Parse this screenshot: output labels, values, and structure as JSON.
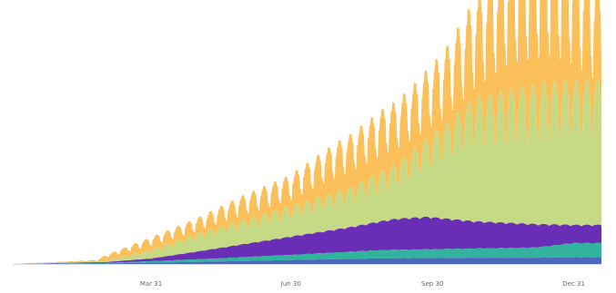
{
  "chart_data": {
    "type": "area",
    "stacked": true,
    "title": "",
    "xlabel": "",
    "ylabel": "",
    "grid": false,
    "legend": "none",
    "x_ticks": [
      {
        "label": "Mar 31",
        "day": 90
      },
      {
        "label": "Jun 30",
        "day": 181
      },
      {
        "label": "Sep 30",
        "day": 273
      },
      {
        "label": "Dec 31",
        "day": 365
      }
    ],
    "x_range_days": [
      0,
      383
    ],
    "y_range": [
      0,
      100
    ],
    "weekly_cycle": true,
    "series": [
      {
        "color": "#4a69bd",
        "x": [
          0,
          60,
          120,
          180,
          240,
          300,
          340,
          365,
          383
        ],
        "y": [
          0,
          0.2,
          0.8,
          1.5,
          2.2,
          2.4,
          2.4,
          2.6,
          2.6
        ]
      },
      {
        "color": "#32b39e",
        "x": [
          0,
          60,
          120,
          180,
          240,
          300,
          340,
          365,
          383
        ],
        "y": [
          0,
          0.2,
          1,
          2,
          3.2,
          3.6,
          4,
          5.5,
          5.5
        ]
      },
      {
        "color": "#6a2db5",
        "x": [
          0,
          60,
          90,
          120,
          180,
          220,
          250,
          270,
          300,
          340,
          365,
          383
        ],
        "y": [
          0,
          0.3,
          1,
          3,
          7,
          9.5,
          12,
          12.5,
          10.5,
          9,
          7,
          7
        ]
      },
      {
        "color": "#c6da85",
        "x": [
          0,
          60,
          90,
          120,
          180,
          220,
          250,
          280,
          300,
          330,
          360,
          383
        ],
        "y": [
          0,
          0.3,
          3,
          6,
          10,
          13,
          18,
          30,
          40,
          45,
          47,
          47
        ]
      },
      {
        "color": "#fbc05a",
        "x": [
          0,
          55,
          60,
          90,
          120,
          150,
          180,
          210,
          240,
          260,
          280,
          300,
          320,
          340,
          350,
          365,
          383
        ],
        "y": [
          0,
          0.5,
          2,
          4,
          5,
          8,
          10,
          16,
          20,
          21,
          24,
          32,
          42,
          45,
          46,
          40,
          30
        ]
      }
    ]
  }
}
